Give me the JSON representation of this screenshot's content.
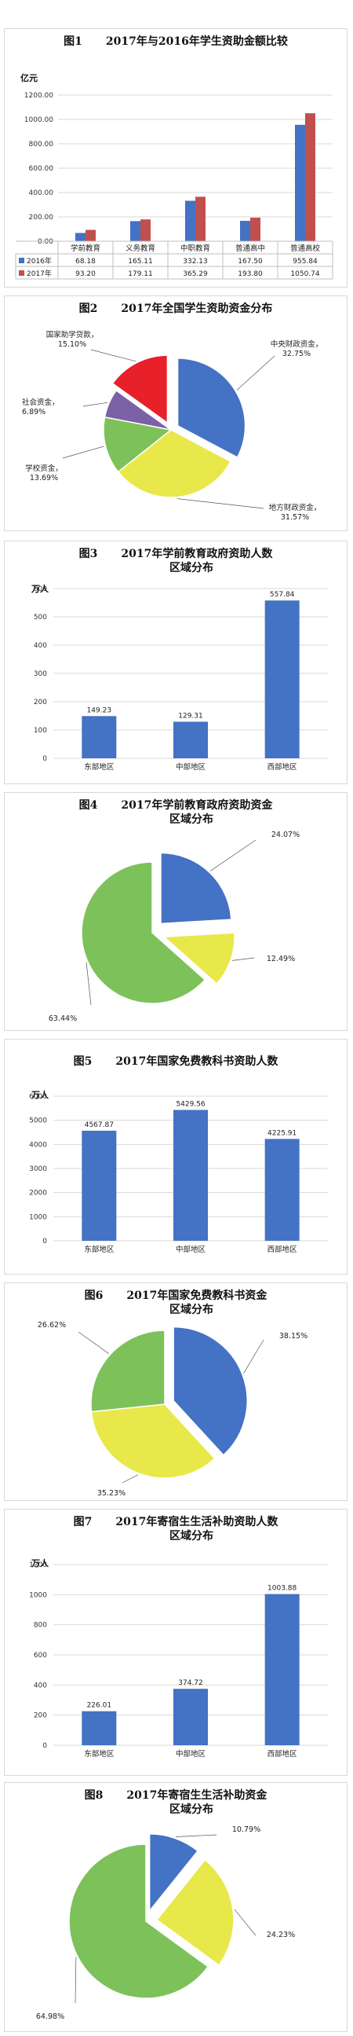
{
  "colors": {
    "blue": "#4472C4",
    "red": "#C0504D",
    "green": "#7DC15A",
    "yellow": "#E8E84A",
    "purple": "#7B62A6",
    "redpie": "#E8202A",
    "grid": "#d9d9d9"
  },
  "chart_data": [
    {
      "id": "c1",
      "type": "bar",
      "fig": "图1",
      "title": "2017年与2016年学生资助金额比较",
      "ylabel": "亿元",
      "ylim": [
        0,
        1200
      ],
      "yticks": [
        "0.00",
        "200.00",
        "400.00",
        "600.00",
        "800.00",
        "1000.00",
        "1200.00"
      ],
      "categories": [
        "学前教育",
        "义务教育",
        "中职教育",
        "普通高中",
        "普通高校"
      ],
      "series": [
        {
          "name": "2016年",
          "values": [
            68.18,
            165.11,
            332.13,
            167.5,
            955.84
          ],
          "labels": [
            "68.18",
            "165.11",
            "332.13",
            "167.50",
            "955.84"
          ]
        },
        {
          "name": "2017年",
          "values": [
            93.2,
            179.11,
            365.29,
            193.8,
            1050.74
          ],
          "labels": [
            "93.20",
            "179.11",
            "365.29",
            "193.80",
            "1050.74"
          ]
        }
      ]
    },
    {
      "id": "c2",
      "type": "pie",
      "fig": "图2",
      "title": "2017年全国学生资助资金分布",
      "slices": [
        {
          "name": "中央财政资金",
          "value": 32.75,
          "label": "中央财政资金, 32.75%",
          "color": "#4472C4"
        },
        {
          "name": "地方财政资金",
          "value": 31.57,
          "label": "地方财政资金, 31.57%",
          "color": "#E8E84A"
        },
        {
          "name": "学校资金",
          "value": 13.69,
          "label": "学校资金, 13.69%",
          "color": "#7DC15A"
        },
        {
          "name": "社会资金",
          "value": 6.89,
          "label": "社会资金, 6.89%",
          "color": "#7B62A6"
        },
        {
          "name": "国家助学贷款",
          "value": 15.1,
          "label": "国家助学贷款, 15.10%",
          "color": "#E8202A"
        }
      ]
    },
    {
      "id": "c3",
      "type": "bar",
      "fig": "图3",
      "title": "2017年学前教育政府资助人数",
      "title2": "区域分布",
      "ylabel": "万人",
      "ylim": [
        0,
        600
      ],
      "yticks": [
        "0",
        "100",
        "200",
        "300",
        "400",
        "500",
        "600"
      ],
      "categories": [
        "东部地区",
        "中部地区",
        "西部地区"
      ],
      "values": [
        149.23,
        129.31,
        557.84
      ],
      "labels": [
        "149.23",
        "129.31",
        "557.84"
      ]
    },
    {
      "id": "c4",
      "type": "pie",
      "fig": "图4",
      "title": "2017年学前教育政府资助资金",
      "title2": "区域分布",
      "slices": [
        {
          "value": 24.07,
          "label": "24.07%",
          "color": "#4472C4"
        },
        {
          "value": 12.49,
          "label": "12.49%",
          "color": "#E8E84A"
        },
        {
          "value": 63.44,
          "label": "63.44%",
          "color": "#7DC15A"
        }
      ]
    },
    {
      "id": "c5",
      "type": "bar",
      "fig": "图5",
      "title": "2017年国家免费教科书资助人数",
      "title2": "",
      "ylabel": "万人",
      "ylim": [
        0,
        6000
      ],
      "yticks": [
        "0",
        "1000",
        "2000",
        "3000",
        "4000",
        "5000",
        "6000"
      ],
      "categories": [
        "东部地区",
        "中部地区",
        "西部地区"
      ],
      "values": [
        4567.87,
        5429.56,
        4225.91
      ],
      "labels": [
        "4567.87",
        "5429.56",
        "4225.91"
      ]
    },
    {
      "id": "c6",
      "type": "pie",
      "fig": "图6",
      "title": "2017年国家免费教科书资金",
      "title2": "区域分布",
      "slices": [
        {
          "value": 38.15,
          "label": "38.15%",
          "color": "#4472C4"
        },
        {
          "value": 35.23,
          "label": "35.23%",
          "color": "#E8E84A"
        },
        {
          "value": 26.62,
          "label": "26.62%",
          "color": "#7DC15A"
        }
      ]
    },
    {
      "id": "c7",
      "type": "bar",
      "fig": "图7",
      "title": "2017年寄宿生生活补助资助人数",
      "title2": "区域分布",
      "ylabel": "万人",
      "ylim": [
        0,
        1200
      ],
      "yticks": [
        "0",
        "200",
        "400",
        "600",
        "800",
        "1000",
        "1200"
      ],
      "categories": [
        "东部地区",
        "中部地区",
        "西部地区"
      ],
      "values": [
        226.01,
        374.72,
        1003.88
      ],
      "labels": [
        "226.01",
        "374.72",
        "1003.88"
      ]
    },
    {
      "id": "c8",
      "type": "pie",
      "fig": "图8",
      "title": "2017年寄宿生生活补助资金",
      "title2": "区域分布",
      "slices": [
        {
          "value": 10.79,
          "label": "10.79%",
          "color": "#4472C4"
        },
        {
          "value": 24.23,
          "label": "24.23%",
          "color": "#E8E84A"
        },
        {
          "value": 64.98,
          "label": "64.98%",
          "color": "#7DC15A"
        }
      ]
    }
  ]
}
